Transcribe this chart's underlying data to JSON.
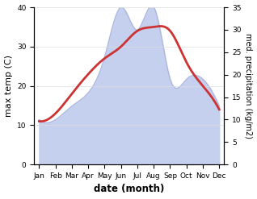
{
  "months": [
    "Jan",
    "Feb",
    "Mar",
    "Apr",
    "May",
    "Jun",
    "Jul",
    "Aug",
    "Sep",
    "Oct",
    "Nov",
    "Dec"
  ],
  "temperature": [
    11,
    13,
    18,
    23,
    27,
    30,
    34,
    35,
    34,
    26,
    20,
    14
  ],
  "precipitation": [
    10,
    10,
    13,
    16,
    24,
    35,
    30,
    35,
    19,
    19,
    19,
    13
  ],
  "temp_color": "#cc3333",
  "precip_fill_color": "#c5d0ee",
  "precip_line_color": "#aab5dd",
  "xlabel": "date (month)",
  "ylabel_left": "max temp (C)",
  "ylabel_right": "med. precipitation (kg/m2)",
  "ylim_left": [
    0,
    40
  ],
  "ylim_right": [
    0,
    35
  ],
  "yticks_left": [
    0,
    10,
    20,
    30,
    40
  ],
  "yticks_right": [
    0,
    5,
    10,
    15,
    20,
    25,
    30,
    35
  ],
  "bg_color": "#ffffff",
  "line_width": 2.0
}
